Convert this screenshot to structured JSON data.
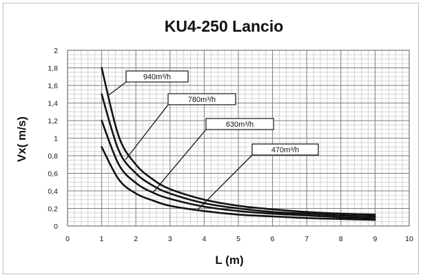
{
  "chart_data": {
    "type": "line",
    "title": "KU4-250 Lancio",
    "xlabel": "L (m)",
    "ylabel": "Vx( m/s)",
    "xlim": [
      0,
      10
    ],
    "ylim": [
      0,
      2
    ],
    "x_ticks": [
      "0",
      "1",
      "2",
      "3",
      "4",
      "5",
      "6",
      "7",
      "8",
      "9",
      "10"
    ],
    "y_ticks": [
      "0",
      "0,2",
      "0,4",
      "0,6",
      "0,8",
      "1",
      "1,2",
      "1,4",
      "1,6",
      "1,8",
      "2"
    ],
    "grid": true,
    "series": [
      {
        "name": "940m³/h",
        "color": "#111111",
        "x": [
          1,
          1.5,
          2,
          2.5,
          3,
          4,
          5,
          6,
          7,
          8,
          9
        ],
        "y": [
          1.8,
          1.02,
          0.7,
          0.53,
          0.42,
          0.3,
          0.23,
          0.19,
          0.16,
          0.14,
          0.13
        ]
      },
      {
        "name": "780m³/h",
        "color": "#111111",
        "x": [
          1,
          1.5,
          2,
          2.5,
          3,
          4,
          5,
          6,
          7,
          8,
          9
        ],
        "y": [
          1.5,
          0.86,
          0.6,
          0.46,
          0.37,
          0.26,
          0.2,
          0.16,
          0.14,
          0.12,
          0.11
        ]
      },
      {
        "name": "630m³/h",
        "color": "#111111",
        "x": [
          1,
          1.5,
          2,
          2.5,
          3,
          4,
          5,
          6,
          7,
          8,
          9
        ],
        "y": [
          1.2,
          0.7,
          0.49,
          0.38,
          0.31,
          0.22,
          0.17,
          0.14,
          0.12,
          0.1,
          0.09
        ]
      },
      {
        "name": "470m³/h",
        "color": "#111111",
        "x": [
          1,
          1.5,
          2,
          2.5,
          3,
          4,
          5,
          6,
          7,
          8,
          9
        ],
        "y": [
          0.9,
          0.53,
          0.37,
          0.29,
          0.23,
          0.17,
          0.13,
          0.11,
          0.09,
          0.08,
          0.07
        ]
      }
    ],
    "annotations": [
      {
        "text": "940m³/h",
        "series": "940m³/h",
        "points_to_x": 1.2
      },
      {
        "text": "780m³/h",
        "series": "780m³/h",
        "points_to_x": 1.7
      },
      {
        "text": "630m³/h",
        "series": "630m³/h",
        "points_to_x": 2.5
      },
      {
        "text": "470m³/h",
        "series": "470m³/h",
        "points_to_x": 3.8
      }
    ]
  }
}
